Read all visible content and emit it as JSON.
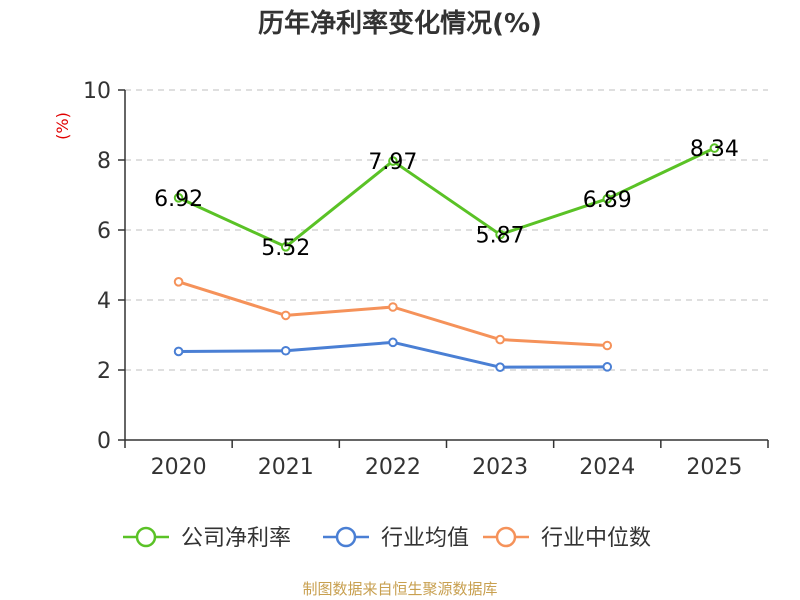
{
  "chart_data": {
    "type": "line",
    "title": "历年净利率变化情况(%)",
    "ylabel": "(%)",
    "xlabel": "",
    "categories": [
      "2020",
      "2021",
      "2022",
      "2023",
      "2024",
      "2025"
    ],
    "ylim": [
      0,
      10
    ],
    "yticks": [
      0,
      2,
      4,
      6,
      8,
      10
    ],
    "grid": true,
    "legend_position": "bottom",
    "series": [
      {
        "name": "公司净利率",
        "color": "#5ac226",
        "values": [
          6.92,
          5.52,
          7.97,
          5.87,
          6.89,
          8.34
        ],
        "show_labels": true
      },
      {
        "name": "行业均值",
        "color": "#4a7fd4",
        "values": [
          2.53,
          2.55,
          2.79,
          2.08,
          2.09,
          null
        ],
        "show_labels": false
      },
      {
        "name": "行业中位数",
        "color": "#f5925a",
        "values": [
          4.52,
          3.56,
          3.8,
          2.87,
          2.7,
          null
        ],
        "show_labels": false
      }
    ],
    "source": "制图数据来自恒生聚源数据库",
    "colors": {
      "axis": "#333333",
      "grid": "#cccccc",
      "ylabel": "#e00000",
      "source": "#c8a050"
    }
  }
}
